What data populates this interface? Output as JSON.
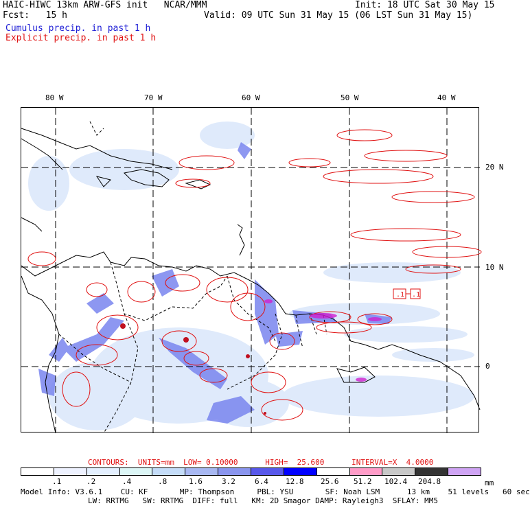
{
  "header": {
    "title_left": "HAIC-HIWC 13km ARW-GFS init   NCAR/MMM",
    "init": "Init: 18 UTC Sat 30 May 15",
    "fcst_label": "Fcst:   15 h",
    "valid": "Valid: 09 UTC Sun 31 May 15 (06 LST Sun 31 May 15)",
    "cumulus_legend": "Cumulus precip. in past 1 h",
    "explicit_legend": "Explicit precip. in past 1 h"
  },
  "map": {
    "lon_labels": [
      "80 W",
      "70 W",
      "60 W",
      "50 W",
      "40 W"
    ],
    "lat_labels": [
      "20 N",
      "10 N",
      "0"
    ],
    "annotations": {
      "h1": ".1",
      "h2": ".1"
    },
    "colors": {
      "cumulus": "#5b6ff0",
      "explicit": "#e01010",
      "magenta": "#d020d0"
    }
  },
  "contours": "CONTOURS:  UNITS=mm  LOW= 0.10000      HIGH=  25.600      INTERVAL=X  4.0000",
  "colorbar": {
    "colors": [
      "#ffffff",
      "#eef2ff",
      "#e4f0ff",
      "#dcf6f6",
      "#c4dcf8",
      "#a8b8f2",
      "#8a95ee",
      "#5858ea",
      "#0000ff",
      "#ffffff",
      "#ff9cc8",
      "#c8c8c8",
      "#333333",
      "#cfa4f4"
    ],
    "labels": [
      ".1",
      ".2",
      ".4",
      ".8",
      "1.6",
      "3.2",
      "6.4",
      "12.8",
      "25.6",
      "51.2",
      "102.4",
      "204.8"
    ],
    "unit": "mm"
  },
  "footer": {
    "line1": "Model Info: V3.6.1    CU: KF       MP: Thompson     PBL: YSU       SF: Noah LSM      13 km    51 levels   60 sec",
    "line2": "LW: RRTMG   SW: RRTMG  DIFF: full   KM: 2D Smagor DAMP: Rayleigh3  SFLAY: MM5"
  }
}
